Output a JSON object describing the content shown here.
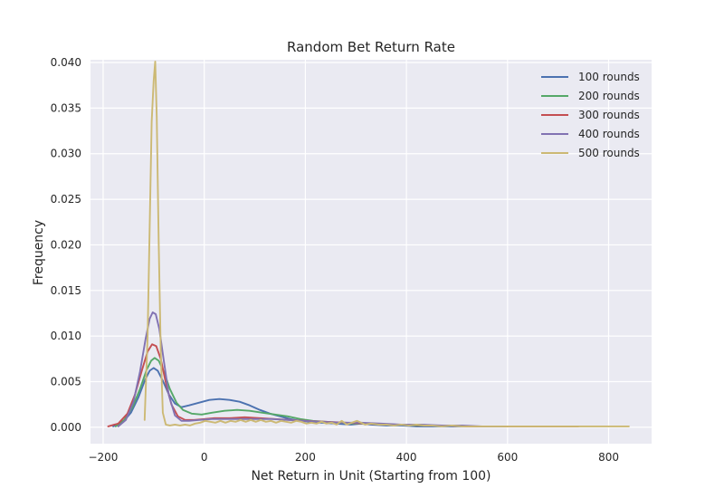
{
  "chart_data": {
    "type": "line",
    "title": "Random Bet Return Rate",
    "xlabel": "Net Return in Unit (Starting from 100)",
    "ylabel": "Frequency",
    "xlim": [
      -225,
      885
    ],
    "ylim": [
      -0.0018,
      0.0403
    ],
    "xticks": [
      -200,
      0,
      200,
      400,
      600,
      800
    ],
    "xtick_labels": [
      "−200",
      "0",
      "200",
      "400",
      "600",
      "800"
    ],
    "yticks": [
      0.0,
      0.005,
      0.01,
      0.015,
      0.02,
      0.025,
      0.03,
      0.035,
      0.04
    ],
    "ytick_labels": [
      "0.000",
      "0.005",
      "0.010",
      "0.015",
      "0.020",
      "0.025",
      "0.030",
      "0.035",
      "0.040"
    ],
    "grid": true,
    "legend_position": "top-right",
    "background": "#eaeaf2",
    "series": [
      {
        "name": "100 rounds",
        "color": "#4c72b0",
        "points": [
          [
            -180,
            0.0001
          ],
          [
            -160,
            0.0006
          ],
          [
            -145,
            0.0016
          ],
          [
            -130,
            0.0033
          ],
          [
            -117,
            0.0052
          ],
          [
            -108,
            0.0062
          ],
          [
            -100,
            0.0065
          ],
          [
            -92,
            0.0062
          ],
          [
            -82,
            0.0051
          ],
          [
            -70,
            0.0036
          ],
          [
            -58,
            0.0026
          ],
          [
            -45,
            0.0022
          ],
          [
            -30,
            0.0024
          ],
          [
            -10,
            0.0027
          ],
          [
            10,
            0.003
          ],
          [
            30,
            0.0031
          ],
          [
            50,
            0.003
          ],
          [
            70,
            0.0028
          ],
          [
            90,
            0.0024
          ],
          [
            110,
            0.0019
          ],
          [
            130,
            0.0015
          ],
          [
            150,
            0.0012
          ],
          [
            170,
            0.0009
          ],
          [
            190,
            0.0007
          ],
          [
            210,
            0.0006
          ],
          [
            230,
            0.0005
          ],
          [
            260,
            0.0004
          ],
          [
            290,
            0.0003
          ],
          [
            310,
            0.0004
          ],
          [
            330,
            0.0003
          ],
          [
            360,
            0.0002
          ],
          [
            390,
            0.0002
          ],
          [
            420,
            0.0001
          ],
          [
            450,
            0.0001
          ],
          [
            490,
            0.0001
          ],
          [
            530,
            0.0001
          ],
          [
            560,
            0.0001
          ],
          [
            590,
            0.0001
          ]
        ]
      },
      {
        "name": "200 rounds",
        "color": "#55a868",
        "points": [
          [
            -175,
            0.0001
          ],
          [
            -158,
            0.0008
          ],
          [
            -142,
            0.0022
          ],
          [
            -127,
            0.0042
          ],
          [
            -114,
            0.0063
          ],
          [
            -105,
            0.0073
          ],
          [
            -98,
            0.0076
          ],
          [
            -90,
            0.0073
          ],
          [
            -80,
            0.0061
          ],
          [
            -68,
            0.0042
          ],
          [
            -55,
            0.0027
          ],
          [
            -42,
            0.0019
          ],
          [
            -25,
            0.0015
          ],
          [
            -5,
            0.0014
          ],
          [
            15,
            0.0016
          ],
          [
            40,
            0.0018
          ],
          [
            65,
            0.0019
          ],
          [
            90,
            0.0018
          ],
          [
            115,
            0.0016
          ],
          [
            140,
            0.0014
          ],
          [
            165,
            0.0012
          ],
          [
            190,
            0.0009
          ],
          [
            215,
            0.0007
          ],
          [
            240,
            0.0006
          ],
          [
            270,
            0.0005
          ],
          [
            300,
            0.0004
          ],
          [
            330,
            0.0004
          ],
          [
            360,
            0.0003
          ],
          [
            390,
            0.0003
          ],
          [
            420,
            0.0002
          ],
          [
            450,
            0.0002
          ],
          [
            490,
            0.0002
          ],
          [
            530,
            0.0001
          ],
          [
            570,
            0.0001
          ],
          [
            600,
            0.0001
          ]
        ]
      },
      {
        "name": "300 rounds",
        "color": "#c44e52",
        "points": [
          [
            -190,
            0.0001
          ],
          [
            -170,
            0.0004
          ],
          [
            -152,
            0.0015
          ],
          [
            -137,
            0.0036
          ],
          [
            -123,
            0.0063
          ],
          [
            -112,
            0.0083
          ],
          [
            -103,
            0.0091
          ],
          [
            -95,
            0.0089
          ],
          [
            -86,
            0.0075
          ],
          [
            -76,
            0.0049
          ],
          [
            -65,
            0.0025
          ],
          [
            -52,
            0.0012
          ],
          [
            -38,
            0.0008
          ],
          [
            -20,
            0.0008
          ],
          [
            0,
            0.0009
          ],
          [
            20,
            0.001
          ],
          [
            50,
            0.001
          ],
          [
            80,
            0.0011
          ],
          [
            110,
            0.001
          ],
          [
            140,
            0.0009
          ],
          [
            170,
            0.0008
          ],
          [
            200,
            0.0007
          ],
          [
            240,
            0.0006
          ],
          [
            280,
            0.0005
          ],
          [
            320,
            0.0004
          ],
          [
            360,
            0.0003
          ],
          [
            400,
            0.0003
          ],
          [
            440,
            0.0002
          ],
          [
            480,
            0.0002
          ],
          [
            520,
            0.0001
          ],
          [
            560,
            0.0001
          ],
          [
            600,
            0.0001
          ],
          [
            650,
            0.0001
          ],
          [
            700,
            0.0001
          ],
          [
            740,
            0.0001
          ]
        ]
      },
      {
        "name": "400 rounds",
        "color": "#8172b2",
        "points": [
          [
            -170,
            0.0001
          ],
          [
            -155,
            0.0008
          ],
          [
            -140,
            0.0028
          ],
          [
            -127,
            0.0061
          ],
          [
            -116,
            0.0097
          ],
          [
            -108,
            0.0119
          ],
          [
            -102,
            0.0126
          ],
          [
            -96,
            0.0124
          ],
          [
            -89,
            0.0108
          ],
          [
            -80,
            0.0073
          ],
          [
            -70,
            0.0035
          ],
          [
            -58,
            0.0013
          ],
          [
            -45,
            0.0007
          ],
          [
            -30,
            0.0007
          ],
          [
            -10,
            0.0008
          ],
          [
            15,
            0.0009
          ],
          [
            45,
            0.0009
          ],
          [
            75,
            0.0009
          ],
          [
            105,
            0.0009
          ],
          [
            135,
            0.0009
          ],
          [
            165,
            0.0008
          ],
          [
            195,
            0.0007
          ],
          [
            230,
            0.0006
          ],
          [
            270,
            0.0005
          ],
          [
            310,
            0.0005
          ],
          [
            350,
            0.0004
          ],
          [
            390,
            0.0003
          ],
          [
            430,
            0.0003
          ],
          [
            470,
            0.0002
          ],
          [
            510,
            0.0002
          ],
          [
            550,
            0.0001
          ],
          [
            590,
            0.0001
          ]
        ]
      },
      {
        "name": "500 rounds",
        "color": "#ccb974",
        "points": [
          [
            -118,
            0.0008
          ],
          [
            -112,
            0.01
          ],
          [
            -108,
            0.022
          ],
          [
            -104,
            0.0335
          ],
          [
            -100,
            0.038
          ],
          [
            -97,
            0.0401
          ],
          [
            -94,
            0.034
          ],
          [
            -90,
            0.02
          ],
          [
            -86,
            0.0085
          ],
          [
            -82,
            0.0016
          ],
          [
            -76,
            0.0003
          ],
          [
            -68,
            0.0002
          ],
          [
            -58,
            0.0003
          ],
          [
            -48,
            0.0002
          ],
          [
            -38,
            0.0003
          ],
          [
            -28,
            0.0002
          ],
          [
            -18,
            0.0004
          ],
          [
            -8,
            0.0005
          ],
          [
            2,
            0.0007
          ],
          [
            12,
            0.0006
          ],
          [
            22,
            0.0005
          ],
          [
            32,
            0.0007
          ],
          [
            42,
            0.0005
          ],
          [
            52,
            0.0007
          ],
          [
            62,
            0.0006
          ],
          [
            72,
            0.0008
          ],
          [
            82,
            0.0006
          ],
          [
            92,
            0.0008
          ],
          [
            102,
            0.0006
          ],
          [
            112,
            0.0008
          ],
          [
            122,
            0.0006
          ],
          [
            132,
            0.0007
          ],
          [
            142,
            0.0005
          ],
          [
            152,
            0.0007
          ],
          [
            162,
            0.0006
          ],
          [
            172,
            0.0005
          ],
          [
            182,
            0.0007
          ],
          [
            192,
            0.0006
          ],
          [
            202,
            0.0004
          ],
          [
            212,
            0.0005
          ],
          [
            222,
            0.0004
          ],
          [
            232,
            0.0006
          ],
          [
            242,
            0.0004
          ],
          [
            252,
            0.0005
          ],
          [
            262,
            0.0003
          ],
          [
            272,
            0.0007
          ],
          [
            282,
            0.0003
          ],
          [
            292,
            0.0005
          ],
          [
            302,
            0.0007
          ],
          [
            310,
            0.0005
          ],
          [
            318,
            0.0003
          ],
          [
            330,
            0.0004
          ],
          [
            345,
            0.0003
          ],
          [
            360,
            0.0003
          ],
          [
            375,
            0.0002
          ],
          [
            390,
            0.0003
          ],
          [
            405,
            0.0002
          ],
          [
            420,
            0.0003
          ],
          [
            435,
            0.0002
          ],
          [
            450,
            0.0002
          ],
          [
            470,
            0.0001
          ],
          [
            490,
            0.0002
          ],
          [
            510,
            0.0001
          ],
          [
            530,
            0.0001
          ],
          [
            550,
            0.0001
          ],
          [
            570,
            0.0001
          ],
          [
            590,
            0.0001
          ],
          [
            610,
            0.0001
          ],
          [
            630,
            0.0001
          ],
          [
            650,
            0.0001
          ],
          [
            670,
            0.0001
          ],
          [
            690,
            0.0001
          ],
          [
            710,
            0.0001
          ],
          [
            730,
            0.0001
          ],
          [
            750,
            0.0001
          ],
          [
            770,
            0.0001
          ],
          [
            790,
            0.0001
          ],
          [
            810,
            0.0001
          ],
          [
            830,
            0.0001
          ],
          [
            840,
            0.0001
          ]
        ]
      }
    ]
  }
}
